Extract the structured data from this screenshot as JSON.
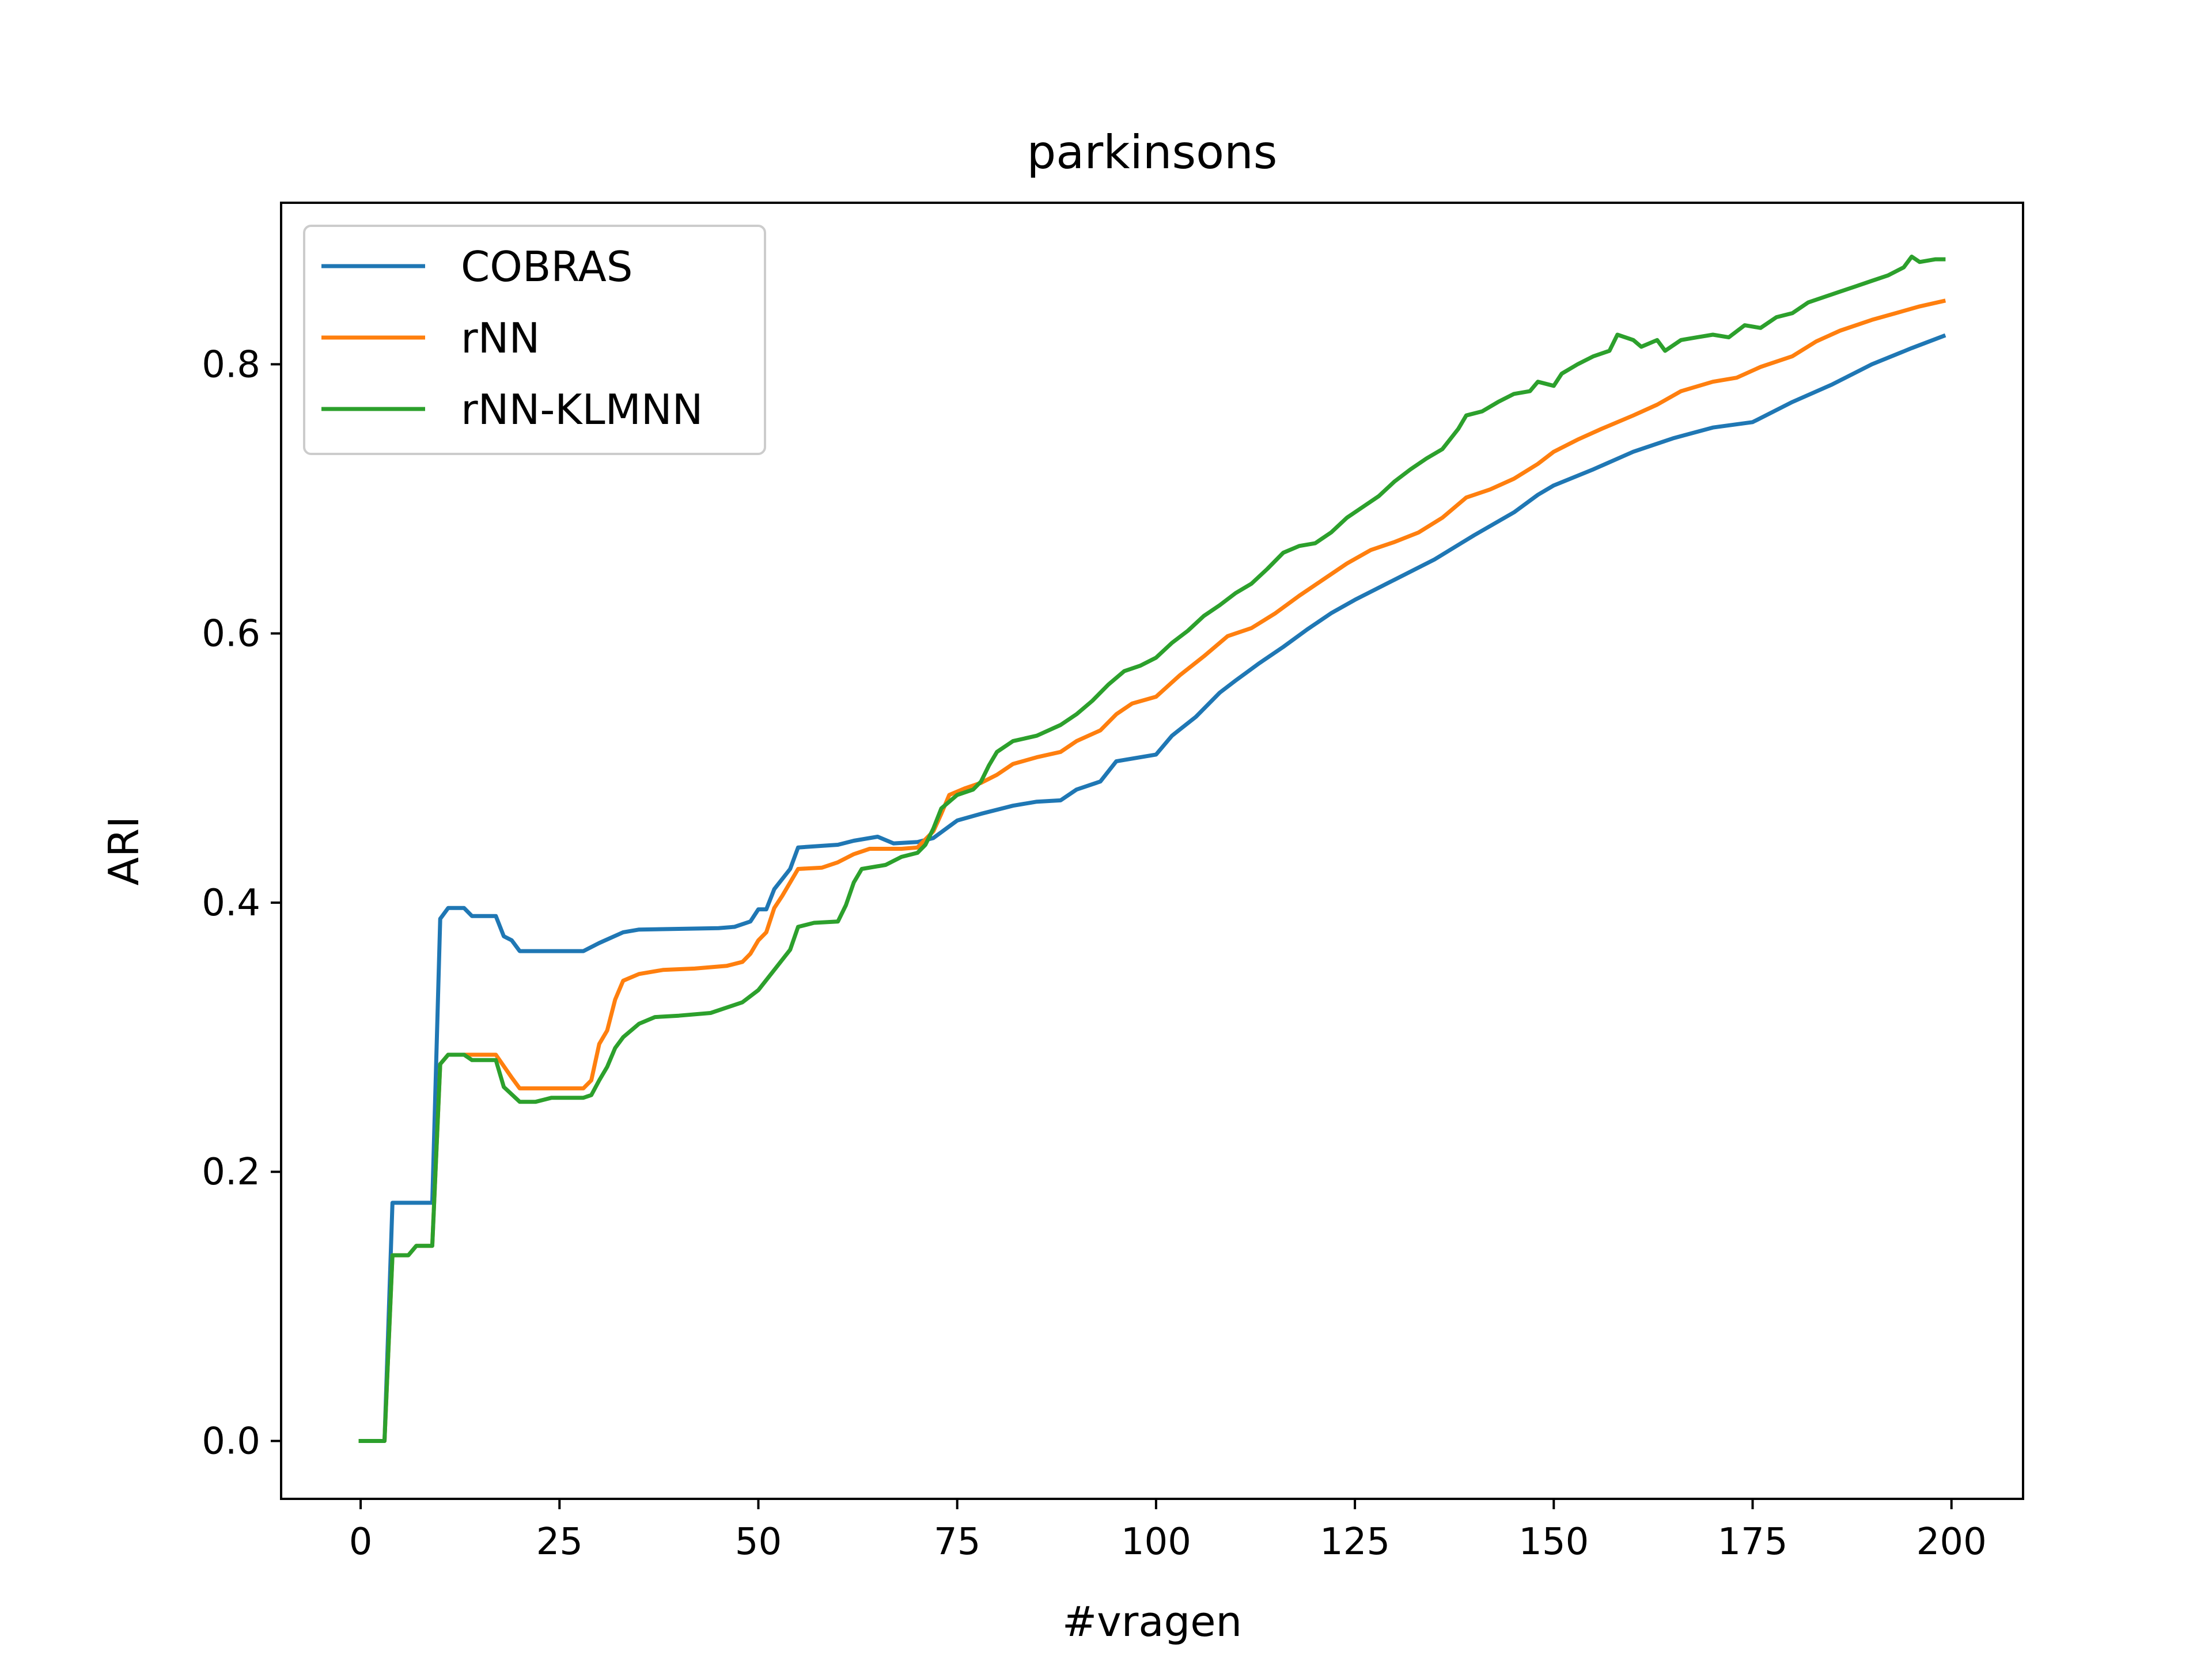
{
  "chart_data": {
    "type": "line",
    "title": "parkinsons",
    "xlabel": "#vragen",
    "ylabel": "ARI",
    "xlim": [
      -10,
      209
    ],
    "ylim": [
      -0.043,
      0.92
    ],
    "xticks": [
      0,
      25,
      50,
      75,
      100,
      125,
      150,
      175,
      200
    ],
    "yticks": [
      0.0,
      0.2,
      0.4,
      0.6,
      0.8
    ],
    "ytick_labels": [
      "0.0",
      "0.2",
      "0.4",
      "0.6",
      "0.8"
    ],
    "grid": false,
    "legend_position": "top-left",
    "series": [
      {
        "name": "COBRAS",
        "color": "#1f77b4",
        "points": [
          [
            0,
            0.0
          ],
          [
            3,
            0.0
          ],
          [
            4,
            0.177
          ],
          [
            9,
            0.177
          ],
          [
            10,
            0.388
          ],
          [
            11,
            0.396
          ],
          [
            13,
            0.396
          ],
          [
            14,
            0.39
          ],
          [
            17,
            0.39
          ],
          [
            18,
            0.375
          ],
          [
            19,
            0.372
          ],
          [
            20,
            0.364
          ],
          [
            28,
            0.364
          ],
          [
            30,
            0.37
          ],
          [
            33,
            0.378
          ],
          [
            35,
            0.38
          ],
          [
            45,
            0.381
          ],
          [
            47,
            0.382
          ],
          [
            49,
            0.386
          ],
          [
            50,
            0.395
          ],
          [
            51,
            0.395
          ],
          [
            52,
            0.41
          ],
          [
            54,
            0.425
          ],
          [
            55,
            0.441
          ],
          [
            60,
            0.443
          ],
          [
            62,
            0.446
          ],
          [
            65,
            0.449
          ],
          [
            67,
            0.444
          ],
          [
            70,
            0.445
          ],
          [
            72,
            0.448
          ],
          [
            75,
            0.461
          ],
          [
            78,
            0.466
          ],
          [
            82,
            0.472
          ],
          [
            85,
            0.475
          ],
          [
            88,
            0.476
          ],
          [
            90,
            0.484
          ],
          [
            93,
            0.49
          ],
          [
            95,
            0.505
          ],
          [
            100,
            0.51
          ],
          [
            102,
            0.524
          ],
          [
            105,
            0.538
          ],
          [
            108,
            0.556
          ],
          [
            110,
            0.565
          ],
          [
            113,
            0.578
          ],
          [
            116,
            0.59
          ],
          [
            119,
            0.603
          ],
          [
            122,
            0.615
          ],
          [
            125,
            0.625
          ],
          [
            130,
            0.64
          ],
          [
            135,
            0.655
          ],
          [
            140,
            0.673
          ],
          [
            145,
            0.69
          ],
          [
            148,
            0.703
          ],
          [
            150,
            0.71
          ],
          [
            155,
            0.722
          ],
          [
            160,
            0.735
          ],
          [
            165,
            0.745
          ],
          [
            170,
            0.753
          ],
          [
            175,
            0.757
          ],
          [
            180,
            0.772
          ],
          [
            185,
            0.785
          ],
          [
            190,
            0.8
          ],
          [
            195,
            0.812
          ],
          [
            199,
            0.821
          ]
        ]
      },
      {
        "name": "rNN",
        "color": "#ff7f0e",
        "points": [
          [
            0,
            0.0
          ],
          [
            3,
            0.0
          ],
          [
            4,
            0.138
          ],
          [
            6,
            0.138
          ],
          [
            7,
            0.145
          ],
          [
            9,
            0.145
          ],
          [
            10,
            0.28
          ],
          [
            11,
            0.287
          ],
          [
            17,
            0.287
          ],
          [
            19,
            0.27
          ],
          [
            20,
            0.262
          ],
          [
            28,
            0.262
          ],
          [
            29,
            0.268
          ],
          [
            30,
            0.295
          ],
          [
            31,
            0.305
          ],
          [
            32,
            0.328
          ],
          [
            33,
            0.342
          ],
          [
            35,
            0.347
          ],
          [
            38,
            0.35
          ],
          [
            42,
            0.351
          ],
          [
            46,
            0.353
          ],
          [
            48,
            0.356
          ],
          [
            49,
            0.362
          ],
          [
            50,
            0.372
          ],
          [
            51,
            0.378
          ],
          [
            52,
            0.396
          ],
          [
            53,
            0.405
          ],
          [
            55,
            0.425
          ],
          [
            58,
            0.426
          ],
          [
            60,
            0.43
          ],
          [
            62,
            0.436
          ],
          [
            64,
            0.44
          ],
          [
            68,
            0.44
          ],
          [
            70,
            0.441
          ],
          [
            72,
            0.453
          ],
          [
            73,
            0.466
          ],
          [
            74,
            0.48
          ],
          [
            76,
            0.485
          ],
          [
            78,
            0.489
          ],
          [
            80,
            0.495
          ],
          [
            82,
            0.503
          ],
          [
            85,
            0.508
          ],
          [
            88,
            0.512
          ],
          [
            90,
            0.52
          ],
          [
            93,
            0.528
          ],
          [
            95,
            0.54
          ],
          [
            97,
            0.548
          ],
          [
            100,
            0.553
          ],
          [
            103,
            0.569
          ],
          [
            106,
            0.583
          ],
          [
            109,
            0.598
          ],
          [
            112,
            0.604
          ],
          [
            115,
            0.615
          ],
          [
            118,
            0.628
          ],
          [
            121,
            0.64
          ],
          [
            124,
            0.652
          ],
          [
            127,
            0.662
          ],
          [
            130,
            0.668
          ],
          [
            133,
            0.675
          ],
          [
            136,
            0.686
          ],
          [
            139,
            0.701
          ],
          [
            142,
            0.707
          ],
          [
            145,
            0.715
          ],
          [
            148,
            0.726
          ],
          [
            150,
            0.735
          ],
          [
            153,
            0.744
          ],
          [
            156,
            0.752
          ],
          [
            160,
            0.762
          ],
          [
            163,
            0.77
          ],
          [
            166,
            0.78
          ],
          [
            170,
            0.787
          ],
          [
            173,
            0.79
          ],
          [
            176,
            0.798
          ],
          [
            180,
            0.806
          ],
          [
            183,
            0.817
          ],
          [
            186,
            0.825
          ],
          [
            190,
            0.833
          ],
          [
            193,
            0.838
          ],
          [
            196,
            0.843
          ],
          [
            199,
            0.847
          ]
        ]
      },
      {
        "name": "rNN-KLMNN",
        "color": "#2ca02c",
        "points": [
          [
            0,
            0.0
          ],
          [
            3,
            0.0
          ],
          [
            4,
            0.138
          ],
          [
            6,
            0.138
          ],
          [
            7,
            0.145
          ],
          [
            9,
            0.145
          ],
          [
            10,
            0.28
          ],
          [
            11,
            0.287
          ],
          [
            13,
            0.287
          ],
          [
            14,
            0.283
          ],
          [
            17,
            0.283
          ],
          [
            18,
            0.263
          ],
          [
            20,
            0.252
          ],
          [
            22,
            0.252
          ],
          [
            24,
            0.255
          ],
          [
            28,
            0.255
          ],
          [
            29,
            0.257
          ],
          [
            30,
            0.268
          ],
          [
            31,
            0.278
          ],
          [
            32,
            0.292
          ],
          [
            33,
            0.3
          ],
          [
            35,
            0.31
          ],
          [
            37,
            0.315
          ],
          [
            40,
            0.316
          ],
          [
            44,
            0.318
          ],
          [
            46,
            0.322
          ],
          [
            48,
            0.326
          ],
          [
            50,
            0.335
          ],
          [
            52,
            0.35
          ],
          [
            54,
            0.365
          ],
          [
            55,
            0.382
          ],
          [
            57,
            0.385
          ],
          [
            60,
            0.386
          ],
          [
            61,
            0.398
          ],
          [
            62,
            0.415
          ],
          [
            63,
            0.425
          ],
          [
            66,
            0.428
          ],
          [
            68,
            0.434
          ],
          [
            70,
            0.437
          ],
          [
            71,
            0.443
          ],
          [
            72,
            0.455
          ],
          [
            73,
            0.47
          ],
          [
            75,
            0.48
          ],
          [
            77,
            0.484
          ],
          [
            78,
            0.49
          ],
          [
            79,
            0.502
          ],
          [
            80,
            0.512
          ],
          [
            82,
            0.52
          ],
          [
            85,
            0.524
          ],
          [
            88,
            0.532
          ],
          [
            90,
            0.54
          ],
          [
            92,
            0.55
          ],
          [
            94,
            0.562
          ],
          [
            96,
            0.572
          ],
          [
            98,
            0.576
          ],
          [
            100,
            0.582
          ],
          [
            102,
            0.593
          ],
          [
            104,
            0.602
          ],
          [
            106,
            0.613
          ],
          [
            108,
            0.621
          ],
          [
            110,
            0.63
          ],
          [
            112,
            0.637
          ],
          [
            114,
            0.648
          ],
          [
            116,
            0.66
          ],
          [
            118,
            0.665
          ],
          [
            120,
            0.667
          ],
          [
            122,
            0.675
          ],
          [
            124,
            0.686
          ],
          [
            126,
            0.694
          ],
          [
            128,
            0.702
          ],
          [
            130,
            0.713
          ],
          [
            132,
            0.722
          ],
          [
            134,
            0.73
          ],
          [
            136,
            0.737
          ],
          [
            138,
            0.752
          ],
          [
            139,
            0.762
          ],
          [
            141,
            0.765
          ],
          [
            143,
            0.772
          ],
          [
            145,
            0.778
          ],
          [
            147,
            0.78
          ],
          [
            148,
            0.787
          ],
          [
            150,
            0.784
          ],
          [
            151,
            0.793
          ],
          [
            153,
            0.8
          ],
          [
            155,
            0.806
          ],
          [
            157,
            0.81
          ],
          [
            158,
            0.822
          ],
          [
            160,
            0.818
          ],
          [
            161,
            0.813
          ],
          [
            163,
            0.818
          ],
          [
            164,
            0.81
          ],
          [
            166,
            0.818
          ],
          [
            168,
            0.82
          ],
          [
            170,
            0.822
          ],
          [
            172,
            0.82
          ],
          [
            174,
            0.829
          ],
          [
            176,
            0.827
          ],
          [
            178,
            0.835
          ],
          [
            180,
            0.838
          ],
          [
            182,
            0.846
          ],
          [
            184,
            0.85
          ],
          [
            186,
            0.854
          ],
          [
            188,
            0.858
          ],
          [
            190,
            0.862
          ],
          [
            192,
            0.866
          ],
          [
            194,
            0.872
          ],
          [
            195,
            0.88
          ],
          [
            196,
            0.876
          ],
          [
            198,
            0.878
          ],
          [
            199,
            0.878
          ]
        ]
      }
    ]
  }
}
